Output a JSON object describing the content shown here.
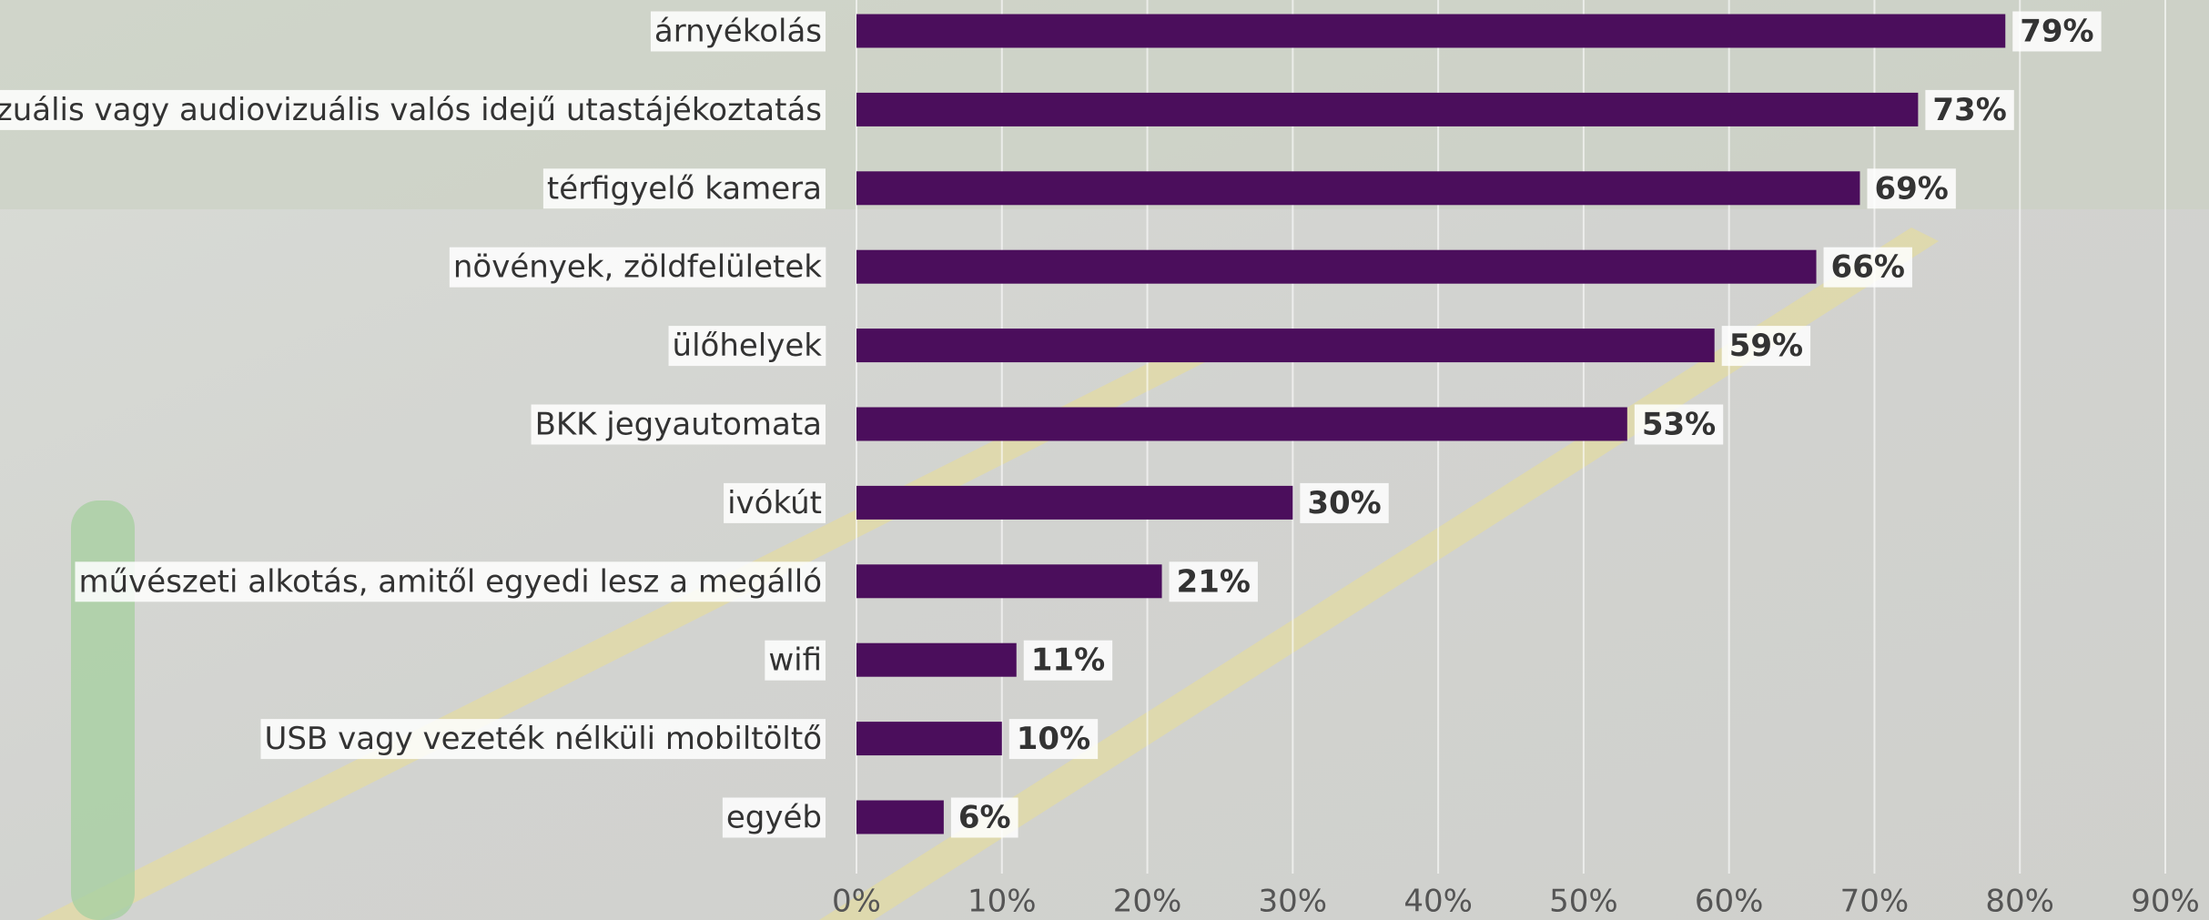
{
  "chart_data": {
    "type": "barh",
    "categories": [
      "árnyékolás",
      "vizuális vagy audiovizuális valós idejű utastájékoztatás",
      "térfigyelő kamera",
      "növények, zöldfelületek",
      "ülőhelyek",
      "BKK jegyautomata",
      "ivókút",
      "művészeti alkotás, amitől egyedi lesz a megálló",
      "wifi",
      "USB vagy vezeték nélküli mobiltöltő",
      "egyéb"
    ],
    "values": [
      79,
      73,
      69,
      66,
      59,
      53,
      30,
      21,
      11,
      10,
      6
    ],
    "value_labels": [
      "79%",
      "73%",
      "69%",
      "66%",
      "59%",
      "53%",
      "30%",
      "21%",
      "11%",
      "10%",
      "6%"
    ],
    "color": "#4b0e5c",
    "xlim": [
      0,
      90
    ],
    "xticks": [
      {
        "value": 0,
        "label": "0%"
      },
      {
        "value": 10,
        "label": "10%"
      },
      {
        "value": 20,
        "label": "20%"
      },
      {
        "value": 30,
        "label": "30%"
      },
      {
        "value": 40,
        "label": "40%"
      },
      {
        "value": 50,
        "label": "50%"
      },
      {
        "value": 60,
        "label": "60%"
      },
      {
        "value": 70,
        "label": "70%"
      },
      {
        "value": 80,
        "label": "80%"
      },
      {
        "value": 90,
        "label": "90%"
      }
    ],
    "grid": true
  }
}
